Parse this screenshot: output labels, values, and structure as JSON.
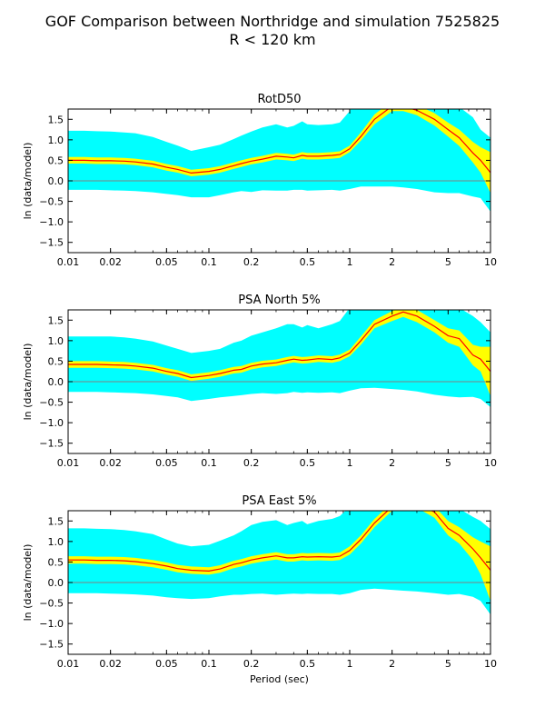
{
  "figure": {
    "title_line1": "GOF Comparison between Northridge and simulation 7525825",
    "title_line2": "R < 120 km"
  },
  "colors": {
    "outer_band": "#00ffff",
    "inner_band": "#ffff00",
    "mean_line": "#ff0000",
    "zero_line": "#808080"
  },
  "chart_data": [
    {
      "type": "area",
      "title": "RotD50",
      "ylabel": "ln (data/model)",
      "xlabel": "",
      "x_scale": "log",
      "xlim": [
        0.01,
        10
      ],
      "ylim": [
        -1.75,
        1.75
      ],
      "xticks": [
        0.01,
        0.02,
        0.05,
        0.1,
        0.2,
        0.5,
        1,
        2,
        5,
        10
      ],
      "xtick_labels": [
        "0.01",
        "0.02",
        "0.05",
        "0.1",
        "0.2",
        "0.5",
        "1",
        "2",
        "5",
        "10"
      ],
      "yticks": [
        -1.5,
        -1.0,
        -0.5,
        0.0,
        0.5,
        1.0,
        1.5
      ],
      "ytick_labels": [
        "−1.5",
        "−1.0",
        "−0.5",
        "0.0",
        "0.5",
        "1.0",
        "1.5"
      ],
      "period": [
        0.01,
        0.013,
        0.016,
        0.02,
        0.025,
        0.03,
        0.04,
        0.05,
        0.06,
        0.075,
        0.1,
        0.12,
        0.15,
        0.17,
        0.2,
        0.24,
        0.3,
        0.36,
        0.4,
        0.46,
        0.5,
        0.6,
        0.75,
        0.85,
        1,
        1.2,
        1.5,
        2,
        2.4,
        3,
        4,
        5,
        6,
        7.5,
        8.5,
        10
      ],
      "mean": [
        0.5,
        0.5,
        0.49,
        0.49,
        0.48,
        0.46,
        0.41,
        0.33,
        0.28,
        0.19,
        0.23,
        0.28,
        0.37,
        0.42,
        0.48,
        0.53,
        0.6,
        0.58,
        0.56,
        0.62,
        0.6,
        0.6,
        0.62,
        0.64,
        0.78,
        1.08,
        1.5,
        1.82,
        1.82,
        1.72,
        1.5,
        1.25,
        1.05,
        0.68,
        0.5,
        0.2
      ],
      "inner_lower": [
        0.42,
        0.42,
        0.41,
        0.41,
        0.4,
        0.38,
        0.33,
        0.25,
        0.2,
        0.11,
        0.15,
        0.2,
        0.29,
        0.34,
        0.4,
        0.45,
        0.52,
        0.5,
        0.48,
        0.54,
        0.52,
        0.52,
        0.54,
        0.56,
        0.7,
        0.98,
        1.38,
        1.7,
        1.7,
        1.6,
        1.35,
        1.08,
        0.85,
        0.45,
        0.2,
        -0.3
      ],
      "inner_upper": [
        0.58,
        0.58,
        0.57,
        0.57,
        0.56,
        0.54,
        0.49,
        0.41,
        0.36,
        0.27,
        0.31,
        0.36,
        0.45,
        0.5,
        0.56,
        0.61,
        0.68,
        0.66,
        0.64,
        0.7,
        0.68,
        0.68,
        0.7,
        0.72,
        0.86,
        1.18,
        1.62,
        1.95,
        1.95,
        1.85,
        1.65,
        1.42,
        1.25,
        0.95,
        0.82,
        0.7
      ],
      "outer_lower": [
        -0.22,
        -0.22,
        -0.22,
        -0.23,
        -0.24,
        -0.25,
        -0.28,
        -0.32,
        -0.35,
        -0.4,
        -0.4,
        -0.35,
        -0.28,
        -0.25,
        -0.27,
        -0.23,
        -0.24,
        -0.24,
        -0.22,
        -0.22,
        -0.24,
        -0.23,
        -0.22,
        -0.24,
        -0.2,
        -0.14,
        -0.14,
        -0.14,
        -0.16,
        -0.2,
        -0.28,
        -0.3,
        -0.3,
        -0.38,
        -0.42,
        -0.75
      ],
      "outer_upper": [
        1.22,
        1.22,
        1.21,
        1.2,
        1.18,
        1.16,
        1.07,
        0.95,
        0.86,
        0.73,
        0.82,
        0.88,
        1.02,
        1.1,
        1.2,
        1.3,
        1.38,
        1.3,
        1.34,
        1.45,
        1.38,
        1.36,
        1.38,
        1.42,
        1.7,
        2.2,
        2.6,
        2.8,
        2.8,
        2.6,
        2.2,
        1.9,
        1.8,
        1.55,
        1.25,
        1.05
      ]
    },
    {
      "type": "area",
      "title": "PSA North 5%",
      "ylabel": "ln (data/model)",
      "xlabel": "",
      "x_scale": "log",
      "xlim": [
        0.01,
        10
      ],
      "ylim": [
        -1.75,
        1.75
      ],
      "xticks": [
        0.01,
        0.02,
        0.05,
        0.1,
        0.2,
        0.5,
        1,
        2,
        5,
        10
      ],
      "xtick_labels": [
        "0.01",
        "0.02",
        "0.05",
        "0.1",
        "0.2",
        "0.5",
        "1",
        "2",
        "5",
        "10"
      ],
      "yticks": [
        -1.5,
        -1.0,
        -0.5,
        0.0,
        0.5,
        1.0,
        1.5
      ],
      "ytick_labels": [
        "−1.5",
        "−1.0",
        "−0.5",
        "0.0",
        "0.5",
        "1.0",
        "1.5"
      ],
      "period": [
        0.01,
        0.013,
        0.016,
        0.02,
        0.025,
        0.03,
        0.04,
        0.05,
        0.06,
        0.075,
        0.1,
        0.12,
        0.15,
        0.17,
        0.2,
        0.24,
        0.3,
        0.36,
        0.4,
        0.46,
        0.5,
        0.6,
        0.75,
        0.85,
        1,
        1.2,
        1.5,
        2,
        2.4,
        3,
        4,
        5,
        6,
        7.5,
        8.5,
        10
      ],
      "mean": [
        0.42,
        0.42,
        0.42,
        0.41,
        0.4,
        0.38,
        0.33,
        0.25,
        0.2,
        0.1,
        0.15,
        0.2,
        0.28,
        0.3,
        0.38,
        0.43,
        0.46,
        0.52,
        0.55,
        0.52,
        0.53,
        0.56,
        0.54,
        0.58,
        0.7,
        1.0,
        1.4,
        1.6,
        1.7,
        1.6,
        1.35,
        1.12,
        1.05,
        0.65,
        0.55,
        0.25
      ],
      "inner_lower": [
        0.34,
        0.34,
        0.34,
        0.33,
        0.32,
        0.3,
        0.25,
        0.17,
        0.12,
        0.02,
        0.07,
        0.12,
        0.2,
        0.22,
        0.3,
        0.35,
        0.38,
        0.44,
        0.47,
        0.44,
        0.45,
        0.48,
        0.46,
        0.5,
        0.62,
        0.9,
        1.3,
        1.48,
        1.58,
        1.45,
        1.2,
        0.95,
        0.85,
        0.4,
        0.25,
        -0.35
      ],
      "inner_upper": [
        0.5,
        0.5,
        0.5,
        0.49,
        0.48,
        0.46,
        0.41,
        0.33,
        0.28,
        0.18,
        0.23,
        0.28,
        0.36,
        0.38,
        0.46,
        0.51,
        0.54,
        0.6,
        0.63,
        0.6,
        0.61,
        0.64,
        0.62,
        0.66,
        0.78,
        1.1,
        1.5,
        1.72,
        1.82,
        1.75,
        1.5,
        1.3,
        1.25,
        0.9,
        0.85,
        0.85
      ],
      "outer_lower": [
        -0.25,
        -0.25,
        -0.25,
        -0.26,
        -0.27,
        -0.28,
        -0.31,
        -0.35,
        -0.38,
        -0.47,
        -0.42,
        -0.38,
        -0.35,
        -0.33,
        -0.3,
        -0.28,
        -0.3,
        -0.28,
        -0.25,
        -0.27,
        -0.26,
        -0.27,
        -0.26,
        -0.28,
        -0.22,
        -0.16,
        -0.15,
        -0.18,
        -0.2,
        -0.24,
        -0.32,
        -0.36,
        -0.38,
        -0.37,
        -0.42,
        -0.62
      ],
      "outer_upper": [
        1.1,
        1.1,
        1.1,
        1.1,
        1.08,
        1.05,
        0.98,
        0.88,
        0.8,
        0.7,
        0.75,
        0.8,
        0.95,
        1.0,
        1.12,
        1.2,
        1.3,
        1.4,
        1.4,
        1.32,
        1.38,
        1.3,
        1.4,
        1.48,
        1.8,
        2.2,
        2.6,
        2.8,
        2.8,
        2.6,
        2.2,
        1.9,
        1.8,
        1.6,
        1.45,
        1.2
      ]
    },
    {
      "type": "area",
      "title": "PSA East 5%",
      "ylabel": "ln (data/model)",
      "xlabel": "Period (sec)",
      "x_scale": "log",
      "xlim": [
        0.01,
        10
      ],
      "ylim": [
        -1.75,
        1.75
      ],
      "xticks": [
        0.01,
        0.02,
        0.05,
        0.1,
        0.2,
        0.5,
        1,
        2,
        5,
        10
      ],
      "xtick_labels": [
        "0.01",
        "0.02",
        "0.05",
        "0.1",
        "0.2",
        "0.5",
        "1",
        "2",
        "5",
        "10"
      ],
      "yticks": [
        -1.5,
        -1.0,
        -0.5,
        0.0,
        0.5,
        1.0,
        1.5
      ],
      "ytick_labels": [
        "−1.5",
        "−1.0",
        "−0.5",
        "0.0",
        "0.5",
        "1.0",
        "1.5"
      ],
      "period": [
        0.01,
        0.013,
        0.016,
        0.02,
        0.025,
        0.03,
        0.04,
        0.05,
        0.06,
        0.075,
        0.1,
        0.12,
        0.15,
        0.17,
        0.2,
        0.24,
        0.3,
        0.36,
        0.4,
        0.46,
        0.5,
        0.6,
        0.75,
        0.85,
        1,
        1.2,
        1.5,
        2,
        2.4,
        3,
        4,
        5,
        6,
        7.5,
        8.5,
        10
      ],
      "mean": [
        0.55,
        0.55,
        0.54,
        0.54,
        0.53,
        0.51,
        0.46,
        0.4,
        0.34,
        0.3,
        0.28,
        0.33,
        0.44,
        0.48,
        0.55,
        0.6,
        0.65,
        0.6,
        0.6,
        0.63,
        0.62,
        0.63,
        0.62,
        0.64,
        0.78,
        1.05,
        1.45,
        1.85,
        1.92,
        1.92,
        1.72,
        1.32,
        1.15,
        0.82,
        0.6,
        0.3
      ],
      "inner_lower": [
        0.46,
        0.46,
        0.45,
        0.45,
        0.44,
        0.42,
        0.37,
        0.31,
        0.25,
        0.21,
        0.19,
        0.24,
        0.35,
        0.39,
        0.46,
        0.51,
        0.56,
        0.51,
        0.51,
        0.54,
        0.53,
        0.54,
        0.53,
        0.55,
        0.68,
        0.95,
        1.35,
        1.75,
        1.82,
        1.82,
        1.58,
        1.15,
        0.95,
        0.55,
        0.2,
        -0.45
      ],
      "inner_upper": [
        0.64,
        0.64,
        0.63,
        0.63,
        0.62,
        0.6,
        0.55,
        0.49,
        0.43,
        0.39,
        0.37,
        0.42,
        0.53,
        0.57,
        0.64,
        0.69,
        0.74,
        0.69,
        0.69,
        0.72,
        0.71,
        0.72,
        0.71,
        0.73,
        0.88,
        1.15,
        1.55,
        1.95,
        2.02,
        2.02,
        1.86,
        1.5,
        1.35,
        1.1,
        1.0,
        0.88
      ],
      "outer_lower": [
        -0.26,
        -0.26,
        -0.26,
        -0.27,
        -0.28,
        -0.29,
        -0.32,
        -0.36,
        -0.38,
        -0.4,
        -0.38,
        -0.34,
        -0.3,
        -0.3,
        -0.28,
        -0.27,
        -0.3,
        -0.28,
        -0.27,
        -0.28,
        -0.27,
        -0.28,
        -0.28,
        -0.3,
        -0.26,
        -0.18,
        -0.15,
        -0.18,
        -0.2,
        -0.22,
        -0.26,
        -0.3,
        -0.28,
        -0.35,
        -0.45,
        -0.78
      ],
      "outer_upper": [
        1.32,
        1.32,
        1.31,
        1.3,
        1.28,
        1.25,
        1.18,
        1.05,
        0.95,
        0.88,
        0.92,
        1.02,
        1.15,
        1.25,
        1.4,
        1.48,
        1.52,
        1.4,
        1.45,
        1.5,
        1.42,
        1.5,
        1.55,
        1.62,
        1.85,
        2.2,
        2.6,
        2.8,
        2.8,
        2.6,
        2.2,
        1.9,
        1.8,
        1.6,
        1.5,
        1.3
      ]
    }
  ]
}
